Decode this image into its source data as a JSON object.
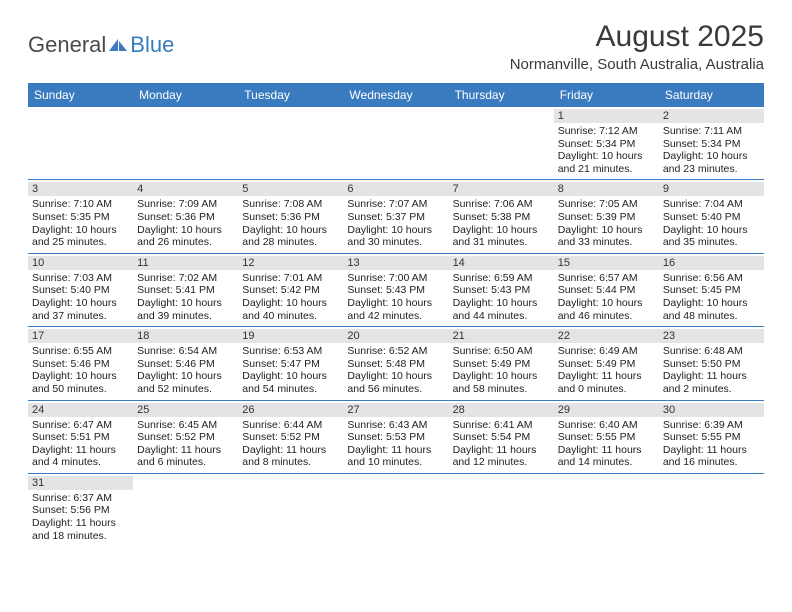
{
  "logo": {
    "part1": "General",
    "part2": "Blue"
  },
  "title": "August 2025",
  "location": "Normanville, South Australia, Australia",
  "dow": [
    "Sunday",
    "Monday",
    "Tuesday",
    "Wednesday",
    "Thursday",
    "Friday",
    "Saturday"
  ],
  "colors": {
    "header_bg": "#3a7bbf",
    "header_fg": "#ffffff",
    "daynum_bg": "#e4e4e4",
    "row_border": "#3a7bbf",
    "text": "#333333",
    "page_bg": "#ffffff"
  },
  "typography": {
    "title_fontsize": 30,
    "location_fontsize": 15,
    "dow_fontsize": 12,
    "cell_fontsize": 10.5
  },
  "weeks": [
    [
      {
        "blank": true
      },
      {
        "blank": true
      },
      {
        "blank": true
      },
      {
        "blank": true
      },
      {
        "blank": true
      },
      {
        "day": "1",
        "sunrise": "Sunrise: 7:12 AM",
        "sunset": "Sunset: 5:34 PM",
        "d1": "Daylight: 10 hours",
        "d2": "and 21 minutes."
      },
      {
        "day": "2",
        "sunrise": "Sunrise: 7:11 AM",
        "sunset": "Sunset: 5:34 PM",
        "d1": "Daylight: 10 hours",
        "d2": "and 23 minutes."
      }
    ],
    [
      {
        "day": "3",
        "sunrise": "Sunrise: 7:10 AM",
        "sunset": "Sunset: 5:35 PM",
        "d1": "Daylight: 10 hours",
        "d2": "and 25 minutes."
      },
      {
        "day": "4",
        "sunrise": "Sunrise: 7:09 AM",
        "sunset": "Sunset: 5:36 PM",
        "d1": "Daylight: 10 hours",
        "d2": "and 26 minutes."
      },
      {
        "day": "5",
        "sunrise": "Sunrise: 7:08 AM",
        "sunset": "Sunset: 5:36 PM",
        "d1": "Daylight: 10 hours",
        "d2": "and 28 minutes."
      },
      {
        "day": "6",
        "sunrise": "Sunrise: 7:07 AM",
        "sunset": "Sunset: 5:37 PM",
        "d1": "Daylight: 10 hours",
        "d2": "and 30 minutes."
      },
      {
        "day": "7",
        "sunrise": "Sunrise: 7:06 AM",
        "sunset": "Sunset: 5:38 PM",
        "d1": "Daylight: 10 hours",
        "d2": "and 31 minutes."
      },
      {
        "day": "8",
        "sunrise": "Sunrise: 7:05 AM",
        "sunset": "Sunset: 5:39 PM",
        "d1": "Daylight: 10 hours",
        "d2": "and 33 minutes."
      },
      {
        "day": "9",
        "sunrise": "Sunrise: 7:04 AM",
        "sunset": "Sunset: 5:40 PM",
        "d1": "Daylight: 10 hours",
        "d2": "and 35 minutes."
      }
    ],
    [
      {
        "day": "10",
        "sunrise": "Sunrise: 7:03 AM",
        "sunset": "Sunset: 5:40 PM",
        "d1": "Daylight: 10 hours",
        "d2": "and 37 minutes."
      },
      {
        "day": "11",
        "sunrise": "Sunrise: 7:02 AM",
        "sunset": "Sunset: 5:41 PM",
        "d1": "Daylight: 10 hours",
        "d2": "and 39 minutes."
      },
      {
        "day": "12",
        "sunrise": "Sunrise: 7:01 AM",
        "sunset": "Sunset: 5:42 PM",
        "d1": "Daylight: 10 hours",
        "d2": "and 40 minutes."
      },
      {
        "day": "13",
        "sunrise": "Sunrise: 7:00 AM",
        "sunset": "Sunset: 5:43 PM",
        "d1": "Daylight: 10 hours",
        "d2": "and 42 minutes."
      },
      {
        "day": "14",
        "sunrise": "Sunrise: 6:59 AM",
        "sunset": "Sunset: 5:43 PM",
        "d1": "Daylight: 10 hours",
        "d2": "and 44 minutes."
      },
      {
        "day": "15",
        "sunrise": "Sunrise: 6:57 AM",
        "sunset": "Sunset: 5:44 PM",
        "d1": "Daylight: 10 hours",
        "d2": "and 46 minutes."
      },
      {
        "day": "16",
        "sunrise": "Sunrise: 6:56 AM",
        "sunset": "Sunset: 5:45 PM",
        "d1": "Daylight: 10 hours",
        "d2": "and 48 minutes."
      }
    ],
    [
      {
        "day": "17",
        "sunrise": "Sunrise: 6:55 AM",
        "sunset": "Sunset: 5:46 PM",
        "d1": "Daylight: 10 hours",
        "d2": "and 50 minutes."
      },
      {
        "day": "18",
        "sunrise": "Sunrise: 6:54 AM",
        "sunset": "Sunset: 5:46 PM",
        "d1": "Daylight: 10 hours",
        "d2": "and 52 minutes."
      },
      {
        "day": "19",
        "sunrise": "Sunrise: 6:53 AM",
        "sunset": "Sunset: 5:47 PM",
        "d1": "Daylight: 10 hours",
        "d2": "and 54 minutes."
      },
      {
        "day": "20",
        "sunrise": "Sunrise: 6:52 AM",
        "sunset": "Sunset: 5:48 PM",
        "d1": "Daylight: 10 hours",
        "d2": "and 56 minutes."
      },
      {
        "day": "21",
        "sunrise": "Sunrise: 6:50 AM",
        "sunset": "Sunset: 5:49 PM",
        "d1": "Daylight: 10 hours",
        "d2": "and 58 minutes."
      },
      {
        "day": "22",
        "sunrise": "Sunrise: 6:49 AM",
        "sunset": "Sunset: 5:49 PM",
        "d1": "Daylight: 11 hours",
        "d2": "and 0 minutes."
      },
      {
        "day": "23",
        "sunrise": "Sunrise: 6:48 AM",
        "sunset": "Sunset: 5:50 PM",
        "d1": "Daylight: 11 hours",
        "d2": "and 2 minutes."
      }
    ],
    [
      {
        "day": "24",
        "sunrise": "Sunrise: 6:47 AM",
        "sunset": "Sunset: 5:51 PM",
        "d1": "Daylight: 11 hours",
        "d2": "and 4 minutes."
      },
      {
        "day": "25",
        "sunrise": "Sunrise: 6:45 AM",
        "sunset": "Sunset: 5:52 PM",
        "d1": "Daylight: 11 hours",
        "d2": "and 6 minutes."
      },
      {
        "day": "26",
        "sunrise": "Sunrise: 6:44 AM",
        "sunset": "Sunset: 5:52 PM",
        "d1": "Daylight: 11 hours",
        "d2": "and 8 minutes."
      },
      {
        "day": "27",
        "sunrise": "Sunrise: 6:43 AM",
        "sunset": "Sunset: 5:53 PM",
        "d1": "Daylight: 11 hours",
        "d2": "and 10 minutes."
      },
      {
        "day": "28",
        "sunrise": "Sunrise: 6:41 AM",
        "sunset": "Sunset: 5:54 PM",
        "d1": "Daylight: 11 hours",
        "d2": "and 12 minutes."
      },
      {
        "day": "29",
        "sunrise": "Sunrise: 6:40 AM",
        "sunset": "Sunset: 5:55 PM",
        "d1": "Daylight: 11 hours",
        "d2": "and 14 minutes."
      },
      {
        "day": "30",
        "sunrise": "Sunrise: 6:39 AM",
        "sunset": "Sunset: 5:55 PM",
        "d1": "Daylight: 11 hours",
        "d2": "and 16 minutes."
      }
    ],
    [
      {
        "day": "31",
        "sunrise": "Sunrise: 6:37 AM",
        "sunset": "Sunset: 5:56 PM",
        "d1": "Daylight: 11 hours",
        "d2": "and 18 minutes."
      },
      {
        "blank": true
      },
      {
        "blank": true
      },
      {
        "blank": true
      },
      {
        "blank": true
      },
      {
        "blank": true
      },
      {
        "blank": true
      }
    ]
  ]
}
